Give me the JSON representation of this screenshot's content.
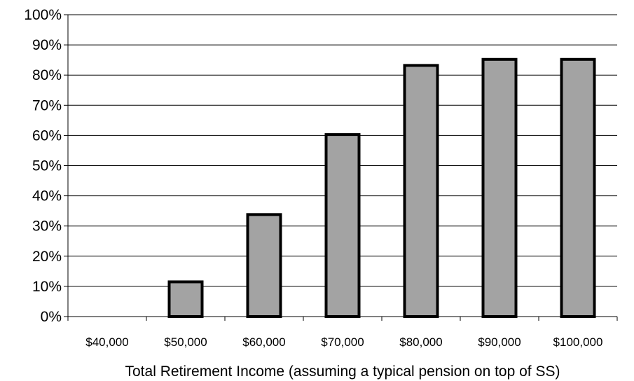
{
  "chart_data": {
    "type": "bar",
    "title": "",
    "xlabel": "Total Retirement Income (assuming a typical pension on top of SS)",
    "ylabel": "",
    "categories": [
      "$40,000",
      "$50,000",
      "$60,000",
      "$70,000",
      "$80,000",
      "$90,000",
      "$100,000"
    ],
    "values": [
      0,
      11.5,
      33.8,
      60.3,
      83.2,
      85.2,
      85.2
    ],
    "ylim": [
      0,
      100
    ],
    "yticks": [
      "0%",
      "10%",
      "20%",
      "30%",
      "40%",
      "50%",
      "60%",
      "70%",
      "80%",
      "90%",
      "100%"
    ],
    "grid": true,
    "legend": "none",
    "bar_color": "#a3a3a3",
    "bar_edge_color": "#000000"
  }
}
